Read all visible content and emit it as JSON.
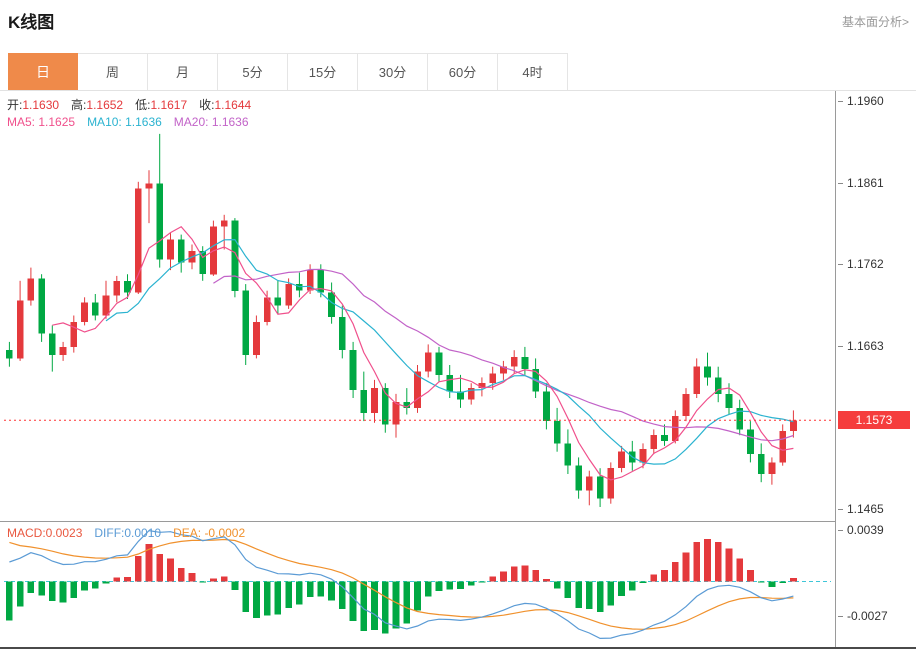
{
  "header": {
    "title": "K线图",
    "link": "基本面分析>"
  },
  "tabs": {
    "items": [
      "日",
      "周",
      "月",
      "5分",
      "15分",
      "30分",
      "60分",
      "4时"
    ],
    "active_index": 0
  },
  "main_info": {
    "open_label": "开:",
    "open": "1.1630",
    "high_label": "高:",
    "high": "1.1652",
    "low_label": "低:",
    "low": "1.1617",
    "close_label": "收:",
    "close": "1.1644",
    "ma5_label": "MA5:",
    "ma5": "1.1625",
    "ma10_label": "MA10:",
    "ma10": "1.1636",
    "ma20_label": "MA20:",
    "ma20": "1.1636"
  },
  "macd_info": {
    "macd_label": "MACD:",
    "macd": "0.0023",
    "diff_label": "DIFF:",
    "diff": "0.0010",
    "dea_label": "DEA:",
    "dea": "-0.0002"
  },
  "colors": {
    "up": "#e4393c",
    "down": "#00a843",
    "ma5": "#f0508c",
    "ma10": "#2bb3d0",
    "ma20": "#c263c8",
    "diff": "#5b9bd5",
    "dea": "#f0912d",
    "zero_line": "#3ec6d8",
    "price_line": "#ff3333",
    "price_tag_bg": "#f53d3d",
    "macd_label": "#e9573f",
    "tab_active_bg": "#ef8a4a"
  },
  "chart_data": {
    "type": "candlestick+macd",
    "legend": [
      "MA5",
      "MA10",
      "MA20",
      "MACD",
      "DIFF",
      "DEA"
    ],
    "main_panel": {
      "y_axis_labels": [
        1.196,
        1.1861,
        1.1762,
        1.1663,
        1.1465
      ],
      "price_range": [
        1.1451,
        1.1972
      ],
      "last_price": 1.1573,
      "ohlc_display": {
        "open": 1.163,
        "high": 1.1652,
        "low": 1.1617,
        "close": 1.1644
      },
      "ma_display": {
        "ma5": 1.1625,
        "ma10": 1.1636,
        "ma20": 1.1636
      },
      "candles_ohlc": [
        [
          1.1658,
          1.1668,
          1.1638,
          1.1648
        ],
        [
          1.1648,
          1.1742,
          1.1645,
          1.1718
        ],
        [
          1.1718,
          1.1758,
          1.1712,
          1.1745
        ],
        [
          1.1745,
          1.175,
          1.1668,
          1.1678
        ],
        [
          1.1678,
          1.1688,
          1.1632,
          1.1652
        ],
        [
          1.1652,
          1.1668,
          1.1645,
          1.1662
        ],
        [
          1.1662,
          1.17,
          1.1655,
          1.1692
        ],
        [
          1.1692,
          1.1722,
          1.1688,
          1.1716
        ],
        [
          1.1716,
          1.1726,
          1.1694,
          1.17
        ],
        [
          1.17,
          1.1742,
          1.1696,
          1.1724
        ],
        [
          1.1724,
          1.1748,
          1.1716,
          1.1742
        ],
        [
          1.1742,
          1.175,
          1.172,
          1.1728
        ],
        [
          1.1728,
          1.1862,
          1.1726,
          1.1854
        ],
        [
          1.1854,
          1.1876,
          1.1812,
          1.186
        ],
        [
          1.186,
          1.192,
          1.1758,
          1.1768
        ],
        [
          1.1768,
          1.18,
          1.1755,
          1.1792
        ],
        [
          1.1792,
          1.1798,
          1.1752,
          1.1764
        ],
        [
          1.1764,
          1.1786,
          1.1756,
          1.1778
        ],
        [
          1.1778,
          1.1784,
          1.1742,
          1.175
        ],
        [
          1.175,
          1.1815,
          1.1748,
          1.1808
        ],
        [
          1.1808,
          1.1822,
          1.178,
          1.1815
        ],
        [
          1.1815,
          1.1818,
          1.1722,
          1.173
        ],
        [
          1.173,
          1.1738,
          1.164,
          1.1652
        ],
        [
          1.1652,
          1.17,
          1.1648,
          1.1692
        ],
        [
          1.1692,
          1.173,
          1.1688,
          1.1722
        ],
        [
          1.1722,
          1.1742,
          1.1702,
          1.1712
        ],
        [
          1.1712,
          1.1745,
          1.1708,
          1.1738
        ],
        [
          1.1738,
          1.1752,
          1.1722,
          1.173
        ],
        [
          1.173,
          1.1762,
          1.1726,
          1.1755
        ],
        [
          1.1755,
          1.1762,
          1.1722,
          1.1728
        ],
        [
          1.1728,
          1.174,
          1.169,
          1.1698
        ],
        [
          1.1698,
          1.1712,
          1.1648,
          1.1658
        ],
        [
          1.1658,
          1.1668,
          1.16,
          1.161
        ],
        [
          1.161,
          1.1632,
          1.1572,
          1.1582
        ],
        [
          1.1582,
          1.1622,
          1.157,
          1.1612
        ],
        [
          1.1612,
          1.1618,
          1.1558,
          1.1568
        ],
        [
          1.1568,
          1.1605,
          1.1552,
          1.1595
        ],
        [
          1.1595,
          1.1612,
          1.158,
          1.1588
        ],
        [
          1.1588,
          1.164,
          1.1582,
          1.1632
        ],
        [
          1.1632,
          1.1665,
          1.1625,
          1.1655
        ],
        [
          1.1655,
          1.1662,
          1.162,
          1.1628
        ],
        [
          1.1628,
          1.164,
          1.16,
          1.1608
        ],
        [
          1.1608,
          1.1628,
          1.1588,
          1.1598
        ],
        [
          1.1598,
          1.1618,
          1.1592,
          1.1612
        ],
        [
          1.1612,
          1.1625,
          1.1602,
          1.1618
        ],
        [
          1.1618,
          1.1638,
          1.161,
          1.163
        ],
        [
          1.163,
          1.1645,
          1.1622,
          1.1638
        ],
        [
          1.1638,
          1.1658,
          1.163,
          1.165
        ],
        [
          1.165,
          1.1662,
          1.1628,
          1.1635
        ],
        [
          1.1635,
          1.1648,
          1.16,
          1.1608
        ],
        [
          1.1608,
          1.1618,
          1.1562,
          1.1572
        ],
        [
          1.1572,
          1.1588,
          1.1535,
          1.1545
        ],
        [
          1.1545,
          1.1562,
          1.1508,
          1.1518
        ],
        [
          1.1518,
          1.1528,
          1.1478,
          1.1488
        ],
        [
          1.1488,
          1.1512,
          1.147,
          1.1505
        ],
        [
          1.1505,
          1.1515,
          1.1468,
          1.1478
        ],
        [
          1.1478,
          1.1522,
          1.1472,
          1.1515
        ],
        [
          1.1515,
          1.1542,
          1.151,
          1.1535
        ],
        [
          1.1535,
          1.1548,
          1.1512,
          1.1522
        ],
        [
          1.1522,
          1.1545,
          1.1515,
          1.1538
        ],
        [
          1.1538,
          1.1562,
          1.1532,
          1.1555
        ],
        [
          1.1555,
          1.1568,
          1.1542,
          1.1548
        ],
        [
          1.1548,
          1.1585,
          1.1545,
          1.1578
        ],
        [
          1.1578,
          1.1612,
          1.1572,
          1.1605
        ],
        [
          1.1605,
          1.1648,
          1.16,
          1.1638
        ],
        [
          1.1638,
          1.1655,
          1.1615,
          1.1625
        ],
        [
          1.1625,
          1.1638,
          1.1595,
          1.1605
        ],
        [
          1.1605,
          1.1618,
          1.158,
          1.1588
        ],
        [
          1.1588,
          1.1598,
          1.1555,
          1.1562
        ],
        [
          1.1562,
          1.1572,
          1.1522,
          1.1532
        ],
        [
          1.1532,
          1.1545,
          1.1498,
          1.1508
        ],
        [
          1.1508,
          1.1528,
          1.1495,
          1.1522
        ],
        [
          1.1522,
          1.1568,
          1.1518,
          1.156
        ],
        [
          1.156,
          1.1585,
          1.1552,
          1.1573
        ]
      ]
    },
    "macd_panel": {
      "y_axis_labels": [
        0.0039,
        -0.0027
      ],
      "display": {
        "macd": 0.0023,
        "diff": 0.001,
        "dea": -0.0002
      }
    }
  }
}
